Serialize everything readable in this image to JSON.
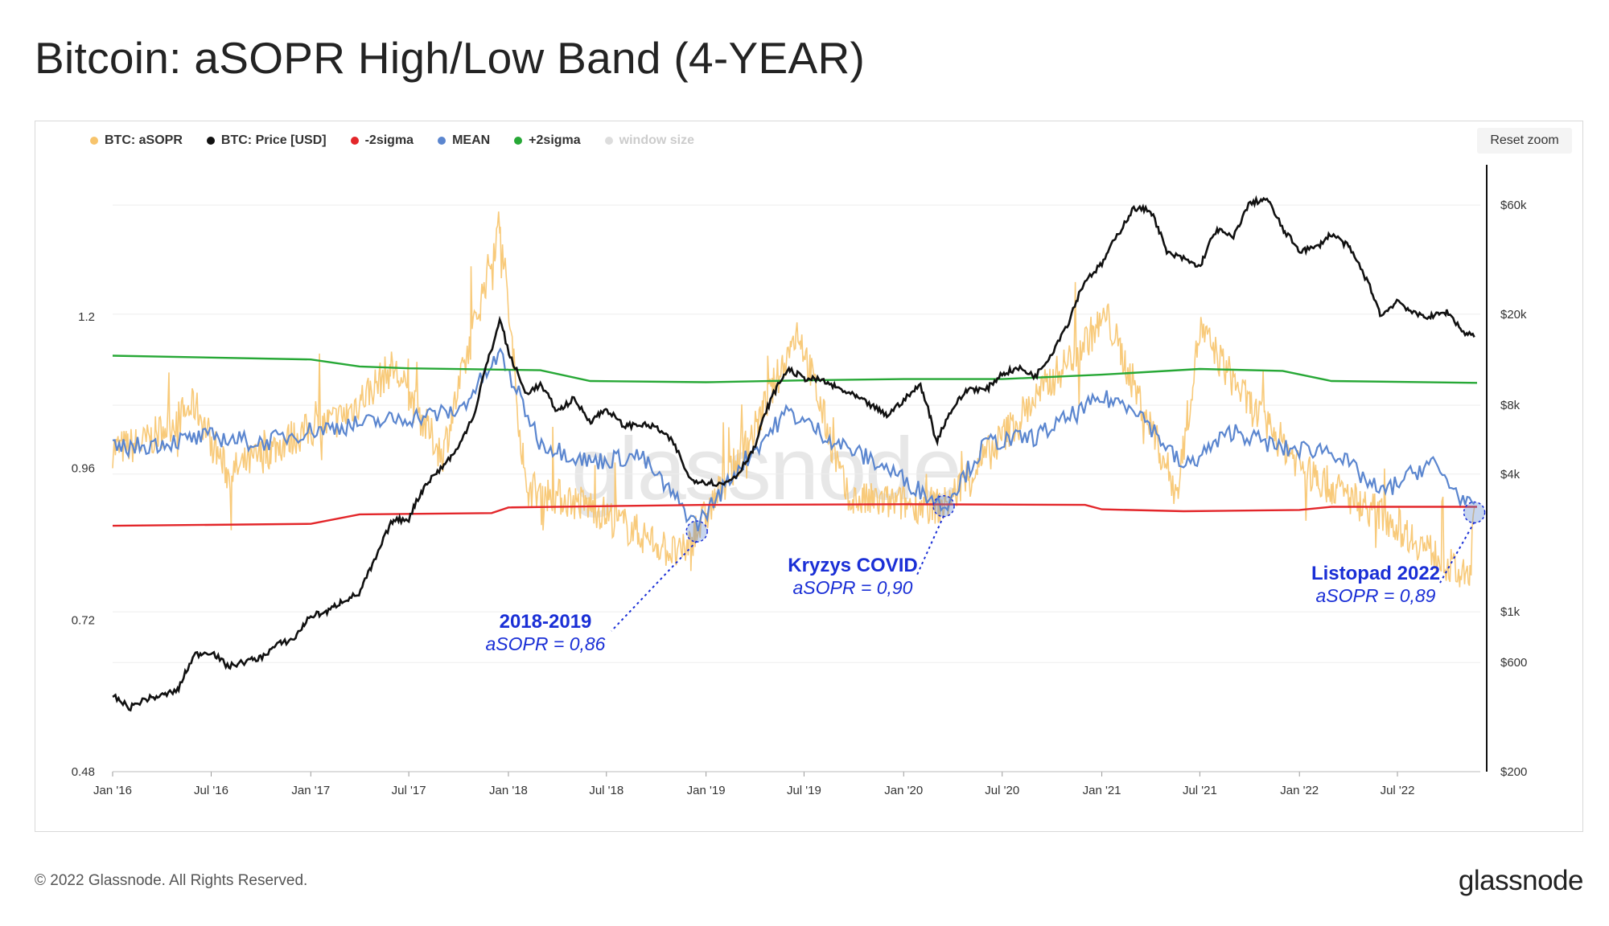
{
  "title": "Bitcoin: aSOPR High/Low Band (4-YEAR)",
  "reset_zoom_label": "Reset zoom",
  "watermark": "glassnode",
  "footer": {
    "copyright": "© 2022 Glassnode. All Rights Reserved.",
    "logo": "glassnode"
  },
  "legend": [
    {
      "label": "BTC: aSOPR",
      "color": "#f7c46c",
      "visible": true
    },
    {
      "label": "BTC: Price [USD]",
      "color": "#111111",
      "visible": true
    },
    {
      "label": "-2sigma",
      "color": "#e3262a",
      "visible": true
    },
    {
      "label": "MEAN",
      "color": "#5b86cf",
      "visible": true
    },
    {
      "label": "+2sigma",
      "color": "#27a836",
      "visible": true
    },
    {
      "label": "window size",
      "color": "#dddddd",
      "visible": false
    }
  ],
  "annotations": [
    {
      "title": "2018-2019",
      "value": "aSOPR = 0,86",
      "date": "2018-12-15",
      "asopr": 0.86
    },
    {
      "title": "Kryzys COVID",
      "value": "aSOPR = 0,90",
      "date": "2020-03-15",
      "asopr": 0.9
    },
    {
      "title": "Listopad 2022",
      "value": "aSOPR = 0,89",
      "date": "2022-11-20",
      "asopr": 0.89
    }
  ],
  "chart_data": {
    "type": "line",
    "x_range": [
      "2016-01-01",
      "2022-12-01"
    ],
    "x_ticks": [
      "Jan '16",
      "Jul '16",
      "Jan '17",
      "Jul '17",
      "Jan '18",
      "Jul '18",
      "Jan '19",
      "Jul '19",
      "Jan '20",
      "Jul '20",
      "Jan '21",
      "Jul '21",
      "Jan '22",
      "Jul '22"
    ],
    "y_left": {
      "scale": "linear",
      "ticks": [
        1.2,
        0.96,
        0.72,
        0.48
      ],
      "tick_labels": [
        "1.2",
        "0.96",
        "0.72",
        "0.48"
      ],
      "range": [
        0.48,
        1.44
      ]
    },
    "y_right": {
      "scale": "log",
      "ticks": [
        60000,
        20000,
        8000,
        4000,
        1000,
        600,
        200
      ],
      "tick_labels": [
        "$60k",
        "$20k",
        "$8k",
        "$4k",
        "$1k",
        "$600",
        "$200"
      ],
      "range": [
        200,
        90000
      ]
    },
    "grid": true,
    "legend_position": "top-left",
    "series": [
      {
        "name": "BTC: Price [USD]",
        "axis": "right",
        "color": "#111111",
        "points": [
          [
            "2016-01-01",
            430
          ],
          [
            "2016-02-01",
            380
          ],
          [
            "2016-03-01",
            415
          ],
          [
            "2016-04-01",
            430
          ],
          [
            "2016-05-01",
            455
          ],
          [
            "2016-06-01",
            650
          ],
          [
            "2016-07-01",
            670
          ],
          [
            "2016-08-01",
            575
          ],
          [
            "2016-09-01",
            605
          ],
          [
            "2016-10-01",
            630
          ],
          [
            "2016-11-01",
            720
          ],
          [
            "2016-12-01",
            760
          ],
          [
            "2017-01-01",
            960
          ],
          [
            "2017-02-01",
            1000
          ],
          [
            "2017-03-01",
            1120
          ],
          [
            "2017-04-01",
            1200
          ],
          [
            "2017-05-01",
            1700
          ],
          [
            "2017-06-01",
            2500
          ],
          [
            "2017-07-01",
            2550
          ],
          [
            "2017-08-01",
            3600
          ],
          [
            "2017-09-01",
            4300
          ],
          [
            "2017-10-01",
            5200
          ],
          [
            "2017-11-01",
            7500
          ],
          [
            "2017-12-01",
            14000
          ],
          [
            "2017-12-17",
            19000
          ],
          [
            "2018-01-01",
            13500
          ],
          [
            "2018-02-01",
            9000
          ],
          [
            "2018-03-01",
            9800
          ],
          [
            "2018-04-01",
            7500
          ],
          [
            "2018-05-01",
            8500
          ],
          [
            "2018-06-01",
            6800
          ],
          [
            "2018-07-01",
            7700
          ],
          [
            "2018-08-01",
            6500
          ],
          [
            "2018-09-01",
            6600
          ],
          [
            "2018-10-01",
            6400
          ],
          [
            "2018-11-01",
            5500
          ],
          [
            "2018-12-01",
            3800
          ],
          [
            "2019-01-01",
            3700
          ],
          [
            "2019-02-01",
            3600
          ],
          [
            "2019-03-01",
            4000
          ],
          [
            "2019-04-01",
            5200
          ],
          [
            "2019-05-01",
            8500
          ],
          [
            "2019-06-01",
            11500
          ],
          [
            "2019-07-01",
            10500
          ],
          [
            "2019-08-01",
            10300
          ],
          [
            "2019-09-01",
            9500
          ],
          [
            "2019-10-01",
            8800
          ],
          [
            "2019-11-01",
            8000
          ],
          [
            "2019-12-01",
            7200
          ],
          [
            "2020-01-01",
            8400
          ],
          [
            "2020-02-01",
            9800
          ],
          [
            "2020-03-01",
            5500
          ],
          [
            "2020-04-01",
            7800
          ],
          [
            "2020-05-01",
            9500
          ],
          [
            "2020-06-01",
            9300
          ],
          [
            "2020-07-01",
            11000
          ],
          [
            "2020-08-01",
            11600
          ],
          [
            "2020-09-01",
            10700
          ],
          [
            "2020-10-01",
            13500
          ],
          [
            "2020-11-01",
            18500
          ],
          [
            "2020-12-01",
            28000
          ],
          [
            "2021-01-01",
            33000
          ],
          [
            "2021-02-01",
            45000
          ],
          [
            "2021-03-01",
            58000
          ],
          [
            "2021-04-01",
            57000
          ],
          [
            "2021-05-01",
            37000
          ],
          [
            "2021-06-01",
            35000
          ],
          [
            "2021-07-01",
            32000
          ],
          [
            "2021-08-01",
            47000
          ],
          [
            "2021-09-01",
            43000
          ],
          [
            "2021-10-01",
            61000
          ],
          [
            "2021-11-01",
            64000
          ],
          [
            "2021-12-01",
            47000
          ],
          [
            "2022-01-01",
            38000
          ],
          [
            "2022-02-01",
            39000
          ],
          [
            "2022-03-01",
            45000
          ],
          [
            "2022-04-01",
            39500
          ],
          [
            "2022-05-01",
            29500
          ],
          [
            "2022-06-01",
            19500
          ],
          [
            "2022-07-01",
            23000
          ],
          [
            "2022-08-01",
            20000
          ],
          [
            "2022-09-01",
            19500
          ],
          [
            "2022-10-01",
            20500
          ],
          [
            "2022-11-01",
            16500
          ],
          [
            "2022-11-25",
            16300
          ]
        ]
      },
      {
        "name": "MEAN",
        "axis": "left",
        "color": "#5b86cf",
        "points": [
          [
            "2016-01-01",
            0.99
          ],
          [
            "2016-04-01",
            1.0
          ],
          [
            "2016-07-01",
            1.01
          ],
          [
            "2016-10-01",
            1.0
          ],
          [
            "2017-01-01",
            1.02
          ],
          [
            "2017-04-01",
            1.03
          ],
          [
            "2017-07-01",
            1.04
          ],
          [
            "2017-10-01",
            1.05
          ],
          [
            "2017-12-17",
            1.14
          ],
          [
            "2018-03-01",
            1.0
          ],
          [
            "2018-06-01",
            0.97
          ],
          [
            "2018-09-01",
            0.98
          ],
          [
            "2018-12-15",
            0.87
          ],
          [
            "2019-03-01",
            0.96
          ],
          [
            "2019-06-01",
            1.05
          ],
          [
            "2019-09-01",
            1.0
          ],
          [
            "2019-12-01",
            0.96
          ],
          [
            "2020-03-15",
            0.9
          ],
          [
            "2020-06-01",
            1.0
          ],
          [
            "2020-09-01",
            1.01
          ],
          [
            "2021-01-01",
            1.07
          ],
          [
            "2021-03-01",
            1.06
          ],
          [
            "2021-06-01",
            0.96
          ],
          [
            "2021-09-01",
            1.02
          ],
          [
            "2021-12-01",
            0.99
          ],
          [
            "2022-03-01",
            0.99
          ],
          [
            "2022-06-01",
            0.92
          ],
          [
            "2022-09-01",
            0.97
          ],
          [
            "2022-11-20",
            0.89
          ]
        ]
      },
      {
        "name": "+2sigma",
        "axis": "left",
        "color": "#27a836",
        "points": [
          [
            "2016-01-01",
            1.138
          ],
          [
            "2017-01-01",
            1.132
          ],
          [
            "2017-04-01",
            1.121
          ],
          [
            "2017-07-01",
            1.118
          ],
          [
            "2018-03-01",
            1.115
          ],
          [
            "2018-06-01",
            1.098
          ],
          [
            "2019-01-01",
            1.096
          ],
          [
            "2019-07-01",
            1.099
          ],
          [
            "2020-01-01",
            1.101
          ],
          [
            "2020-07-01",
            1.101
          ],
          [
            "2021-01-01",
            1.108
          ],
          [
            "2021-07-01",
            1.117
          ],
          [
            "2021-12-01",
            1.114
          ],
          [
            "2022-03-01",
            1.098
          ],
          [
            "2022-11-25",
            1.095
          ]
        ]
      },
      {
        "name": "-2sigma",
        "axis": "left",
        "color": "#e3262a",
        "points": [
          [
            "2016-01-01",
            0.869
          ],
          [
            "2017-01-01",
            0.872
          ],
          [
            "2017-04-01",
            0.887
          ],
          [
            "2017-12-01",
            0.889
          ],
          [
            "2018-01-01",
            0.898
          ],
          [
            "2019-01-01",
            0.902
          ],
          [
            "2020-01-01",
            0.903
          ],
          [
            "2020-12-01",
            0.902
          ],
          [
            "2021-01-01",
            0.895
          ],
          [
            "2021-06-01",
            0.892
          ],
          [
            "2022-01-01",
            0.894
          ],
          [
            "2022-03-01",
            0.899
          ],
          [
            "2022-11-25",
            0.899
          ]
        ]
      },
      {
        "name": "BTC: aSOPR",
        "axis": "left",
        "color": "#f7c46c",
        "points": [
          [
            "2016-01-01",
            0.99
          ],
          [
            "2016-03-01",
            1.0
          ],
          [
            "2016-06-01",
            1.06
          ],
          [
            "2016-08-01",
            0.95
          ],
          [
            "2016-12-01",
            1.01
          ],
          [
            "2017-03-01",
            1.04
          ],
          [
            "2017-06-01",
            1.12
          ],
          [
            "2017-09-01",
            0.98
          ],
          [
            "2017-12-17",
            1.35
          ],
          [
            "2018-02-01",
            0.93
          ],
          [
            "2018-06-01",
            0.9
          ],
          [
            "2018-11-15",
            0.82
          ],
          [
            "2018-12-15",
            0.86
          ],
          [
            "2019-04-01",
            1.02
          ],
          [
            "2019-06-20",
            1.18
          ],
          [
            "2019-09-20",
            0.91
          ],
          [
            "2020-03-15",
            0.9
          ],
          [
            "2020-08-01",
            1.04
          ],
          [
            "2021-01-10",
            1.2
          ],
          [
            "2021-05-20",
            0.92
          ],
          [
            "2021-07-01",
            1.18
          ],
          [
            "2021-10-01",
            1.06
          ],
          [
            "2022-01-20",
            0.95
          ],
          [
            "2022-06-15",
            0.88
          ],
          [
            "2022-11-10",
            0.78
          ],
          [
            "2022-11-20",
            0.89
          ]
        ]
      }
    ]
  }
}
